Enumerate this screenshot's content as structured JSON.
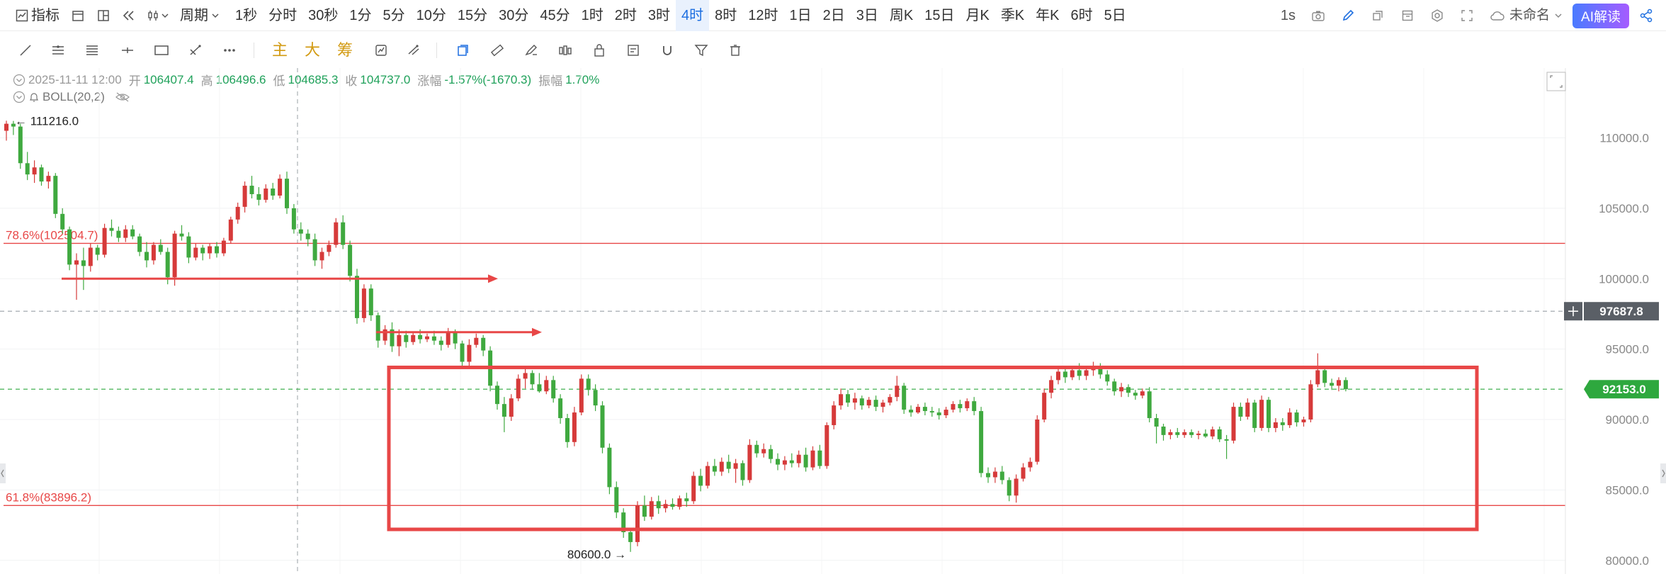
{
  "toolbar": {
    "indicator_label": "指标",
    "period_label": "周期",
    "intervals": [
      "1秒",
      "分时",
      "30秒",
      "1分",
      "5分",
      "10分",
      "15分",
      "30分",
      "45分",
      "1时",
      "2时",
      "3时",
      "4时",
      "8时",
      "12时",
      "1日",
      "2日",
      "3日",
      "周K",
      "15日",
      "月K",
      "季K",
      "年K",
      "6时",
      "5日"
    ],
    "active_interval": "4时",
    "refresh_label": "1s",
    "layout_name": "未命名",
    "ai_label": "AI解读"
  },
  "drawing_tools": {
    "chip_labels": [
      "主",
      "大",
      "筹"
    ]
  },
  "ohlc": {
    "datetime": "2025-11-11 12:00",
    "open_label": "开",
    "open": "106407.4",
    "high_label": "高",
    "high": "106496.6",
    "low_label": "低",
    "low": "104685.3",
    "close_label": "收",
    "close": "104737.0",
    "change_label": "涨幅",
    "change": "-1.57%(-1670.3)",
    "amplitude_label": "振幅",
    "amplitude": "1.70%"
  },
  "indicator": {
    "name": "BOLL(20,2)"
  },
  "colors": {
    "up": "#d63a3a",
    "down": "#3fa93f",
    "annotation": "#e84747",
    "last_price_bg": "#2ea83e",
    "crosshair_bg": "#5a5f66",
    "accent": "#1e6fe0"
  },
  "chart_data": {
    "type": "candlestick",
    "symbol_interval": "4时",
    "y_ticks": [
      "110000.0",
      "105000.0",
      "100000.0",
      "95000.0",
      "90000.0",
      "85000.0",
      "80000.0"
    ],
    "ylim": [
      79900,
      114000
    ],
    "high_marker": "111216.0",
    "low_marker": "80600.0",
    "last_price": "92153.0",
    "crosshair_price": "97687.8",
    "fib_levels": [
      {
        "label": "78.6%(102504.7)",
        "price": 102504.7
      },
      {
        "label": "61.8%(83896.2)",
        "price": 83896.2
      }
    ],
    "annotations": {
      "range_box": {
        "top_price": 93700,
        "bottom_price": 82200
      },
      "arrows": [
        {
          "price": 100000
        },
        {
          "price": 96200
        }
      ]
    },
    "candles": [
      [
        110500,
        111216,
        109800,
        111000
      ],
      [
        111000,
        111200,
        110200,
        110800
      ],
      [
        110800,
        111000,
        107800,
        108200
      ],
      [
        108200,
        109000,
        107000,
        107400
      ],
      [
        107400,
        108400,
        106800,
        107900
      ],
      [
        107900,
        108100,
        106600,
        106900
      ],
      [
        106900,
        107600,
        106400,
        107300
      ],
      [
        107300,
        107500,
        104300,
        104600
      ],
      [
        104600,
        105000,
        103200,
        103500
      ],
      [
        103500,
        103700,
        100600,
        101000
      ],
      [
        101000,
        101800,
        98500,
        101300
      ],
      [
        101300,
        102200,
        99200,
        100900
      ],
      [
        100900,
        102500,
        100500,
        102200
      ],
      [
        102200,
        102400,
        101300,
        101700
      ],
      [
        101700,
        103900,
        101500,
        103600
      ],
      [
        103600,
        104200,
        103000,
        103400
      ],
      [
        103400,
        103700,
        102600,
        102900
      ],
      [
        102900,
        103800,
        102600,
        103500
      ],
      [
        103500,
        103800,
        102800,
        103000
      ],
      [
        103000,
        103200,
        101600,
        101900
      ],
      [
        101900,
        102600,
        100800,
        101300
      ],
      [
        101300,
        102600,
        101000,
        102400
      ],
      [
        102400,
        102800,
        101700,
        101900
      ],
      [
        101900,
        102200,
        99600,
        100100
      ],
      [
        100100,
        103400,
        99500,
        103200
      ],
      [
        103200,
        103800,
        102700,
        103000
      ],
      [
        103000,
        103300,
        101100,
        101500
      ],
      [
        101500,
        102500,
        101300,
        102200
      ],
      [
        102200,
        102400,
        101300,
        101800
      ],
      [
        101800,
        102500,
        101400,
        102300
      ],
      [
        102300,
        102600,
        101500,
        101800
      ],
      [
        101800,
        102900,
        101600,
        102700
      ],
      [
        102700,
        104400,
        102500,
        104200
      ],
      [
        104200,
        105400,
        103900,
        105100
      ],
      [
        105100,
        106900,
        104700,
        106600
      ],
      [
        106600,
        107300,
        105700,
        106000
      ],
      [
        106000,
        106500,
        105200,
        105600
      ],
      [
        105600,
        106700,
        105400,
        106400
      ],
      [
        106400,
        106800,
        105600,
        105900
      ],
      [
        105900,
        107400,
        105700,
        107100
      ],
      [
        107100,
        107600,
        104600,
        105000
      ],
      [
        105000,
        105300,
        103200,
        103500
      ],
      [
        103500,
        104000,
        102700,
        103200
      ],
      [
        103200,
        103500,
        102300,
        102800
      ],
      [
        102800,
        103200,
        100900,
        101300
      ],
      [
        101300,
        102200,
        100700,
        101900
      ],
      [
        101900,
        102700,
        101600,
        102400
      ],
      [
        102400,
        104300,
        102200,
        104000
      ],
      [
        104000,
        104500,
        102100,
        102400
      ],
      [
        102400,
        102700,
        99800,
        100200
      ],
      [
        100200,
        100700,
        96800,
        97200
      ],
      [
        97200,
        99600,
        96900,
        99300
      ],
      [
        99300,
        99600,
        97000,
        97400
      ],
      [
        97400,
        97600,
        95100,
        95600
      ],
      [
        95600,
        96700,
        95300,
        96400
      ],
      [
        96400,
        96900,
        94800,
        95200
      ],
      [
        95200,
        96400,
        94500,
        96000
      ],
      [
        96000,
        96300,
        95100,
        95500
      ],
      [
        95500,
        96200,
        95300,
        96000
      ],
      [
        96000,
        96400,
        95400,
        95700
      ],
      [
        95700,
        96100,
        95500,
        95900
      ],
      [
        95900,
        96300,
        95300,
        95600
      ],
      [
        95600,
        95900,
        94900,
        95300
      ],
      [
        95300,
        96500,
        95100,
        96200
      ],
      [
        96200,
        96400,
        95000,
        95400
      ],
      [
        95400,
        95600,
        93700,
        94100
      ],
      [
        94100,
        95700,
        93600,
        95300
      ],
      [
        95300,
        96100,
        95100,
        95800
      ],
      [
        95800,
        96000,
        94500,
        94900
      ],
      [
        94900,
        95200,
        92000,
        92400
      ],
      [
        92400,
        92700,
        90700,
        91100
      ],
      [
        91100,
        91600,
        89100,
        90200
      ],
      [
        90200,
        91800,
        89900,
        91500
      ],
      [
        91500,
        93200,
        91300,
        92900
      ],
      [
        92900,
        93600,
        92200,
        93300
      ],
      [
        93300,
        93500,
        92100,
        92500
      ],
      [
        92500,
        93300,
        91900,
        92000
      ],
      [
        92000,
        93100,
        91800,
        92800
      ],
      [
        92800,
        93100,
        91200,
        91500
      ],
      [
        91500,
        91800,
        89700,
        90100
      ],
      [
        90100,
        90400,
        88000,
        88400
      ],
      [
        88400,
        90900,
        88100,
        90500
      ],
      [
        90500,
        93200,
        90300,
        92900
      ],
      [
        92900,
        93200,
        91700,
        92100
      ],
      [
        92100,
        92500,
        90600,
        91000
      ],
      [
        91000,
        91300,
        87600,
        88000
      ],
      [
        88000,
        88300,
        84700,
        85200
      ],
      [
        85200,
        85600,
        83000,
        83400
      ],
      [
        83400,
        83700,
        81600,
        82000
      ],
      [
        82000,
        82300,
        80600,
        81300
      ],
      [
        81300,
        84200,
        81000,
        83900
      ],
      [
        83900,
        84600,
        82800,
        83100
      ],
      [
        83100,
        84500,
        82900,
        84200
      ],
      [
        84200,
        84600,
        83300,
        83700
      ],
      [
        83700,
        84300,
        83400,
        84000
      ],
      [
        84000,
        84400,
        83600,
        83800
      ],
      [
        83800,
        84600,
        83600,
        84400
      ],
      [
        84400,
        84800,
        83800,
        84200
      ],
      [
        84200,
        86300,
        84000,
        86000
      ],
      [
        86000,
        86500,
        84900,
        85300
      ],
      [
        85300,
        87000,
        85100,
        86700
      ],
      [
        86700,
        87200,
        86000,
        86300
      ],
      [
        86300,
        87300,
        86000,
        87000
      ],
      [
        87000,
        87500,
        86200,
        86500
      ],
      [
        86500,
        87200,
        85500,
        86900
      ],
      [
        86900,
        87100,
        85300,
        85700
      ],
      [
        85700,
        88600,
        85500,
        88200
      ],
      [
        88200,
        88500,
        87300,
        87600
      ],
      [
        87600,
        88300,
        87300,
        87900
      ],
      [
        87900,
        88200,
        86900,
        87200
      ],
      [
        87200,
        87600,
        86400,
        86800
      ],
      [
        86800,
        87400,
        86400,
        87100
      ],
      [
        87100,
        87600,
        86600,
        86900
      ],
      [
        86900,
        87800,
        86600,
        87500
      ],
      [
        87500,
        88000,
        86300,
        86600
      ],
      [
        86600,
        88100,
        86400,
        87800
      ],
      [
        87800,
        88200,
        86500,
        86700
      ],
      [
        86700,
        89800,
        86500,
        89600
      ],
      [
        89600,
        91300,
        89300,
        91000
      ],
      [
        91000,
        92200,
        90700,
        91800
      ],
      [
        91800,
        92100,
        90900,
        91200
      ],
      [
        91200,
        91900,
        90700,
        91500
      ],
      [
        91500,
        91700,
        90700,
        91000
      ],
      [
        91000,
        91600,
        90800,
        91400
      ],
      [
        91400,
        91700,
        90600,
        90900
      ],
      [
        90900,
        91400,
        90500,
        91200
      ],
      [
        91200,
        91800,
        91000,
        91600
      ],
      [
        91600,
        93100,
        91300,
        92400
      ],
      [
        92400,
        92600,
        90400,
        90700
      ],
      [
        90700,
        91000,
        90200,
        90500
      ],
      [
        90500,
        91100,
        90400,
        90900
      ],
      [
        90900,
        91200,
        90300,
        90600
      ],
      [
        90600,
        90900,
        90200,
        90500
      ],
      [
        90500,
        90800,
        90000,
        90300
      ],
      [
        90300,
        90900,
        90100,
        90700
      ],
      [
        90700,
        91300,
        90500,
        91100
      ],
      [
        91100,
        91400,
        90500,
        90800
      ],
      [
        90800,
        91500,
        90600,
        91300
      ],
      [
        91300,
        91600,
        90300,
        90600
      ],
      [
        90600,
        90900,
        85900,
        86200
      ],
      [
        86200,
        86600,
        85500,
        85900
      ],
      [
        85900,
        86600,
        85500,
        86300
      ],
      [
        86300,
        86700,
        85400,
        85700
      ],
      [
        85700,
        85900,
        84200,
        84600
      ],
      [
        84600,
        86100,
        84100,
        85800
      ],
      [
        85800,
        86900,
        85600,
        86600
      ],
      [
        86600,
        87300,
        86300,
        87000
      ],
      [
        87000,
        90300,
        86800,
        90000
      ],
      [
        90000,
        92200,
        89800,
        91900
      ],
      [
        91900,
        93100,
        91500,
        92800
      ],
      [
        92800,
        93700,
        92500,
        93400
      ],
      [
        93400,
        93600,
        92600,
        93000
      ],
      [
        93000,
        93700,
        92800,
        93500
      ],
      [
        93500,
        94000,
        92800,
        93100
      ],
      [
        93100,
        93800,
        92800,
        93500
      ],
      [
        93500,
        94100,
        93100,
        93800
      ],
      [
        93800,
        94000,
        92900,
        93200
      ],
      [
        93200,
        93500,
        92400,
        92700
      ],
      [
        92700,
        92900,
        91700,
        92000
      ],
      [
        92000,
        92600,
        91600,
        92300
      ],
      [
        92300,
        92500,
        91600,
        91900
      ],
      [
        91900,
        92100,
        91400,
        91700
      ],
      [
        91700,
        92200,
        91500,
        92000
      ],
      [
        92000,
        92300,
        89800,
        90100
      ],
      [
        90100,
        90400,
        88300,
        89500
      ],
      [
        89500,
        89700,
        88500,
        88900
      ],
      [
        88900,
        89300,
        88600,
        89100
      ],
      [
        89100,
        89400,
        88700,
        88900
      ],
      [
        88900,
        89300,
        88700,
        89100
      ],
      [
        89100,
        89300,
        88700,
        88900
      ],
      [
        88900,
        89200,
        88600,
        89000
      ],
      [
        89000,
        89300,
        88700,
        88800
      ],
      [
        88800,
        89500,
        88600,
        89300
      ],
      [
        89300,
        89500,
        88400,
        88600
      ],
      [
        88600,
        88900,
        87200,
        88500
      ],
      [
        88500,
        91200,
        88300,
        90900
      ],
      [
        90900,
        91200,
        89900,
        90200
      ],
      [
        90200,
        91500,
        90000,
        91200
      ],
      [
        91200,
        91400,
        89100,
        89400
      ],
      [
        89400,
        91700,
        89200,
        91400
      ],
      [
        91400,
        91600,
        89100,
        89400
      ],
      [
        89400,
        90100,
        89100,
        89800
      ],
      [
        89800,
        90100,
        89200,
        89600
      ],
      [
        89600,
        90800,
        89400,
        90500
      ],
      [
        90500,
        90700,
        89500,
        89800
      ],
      [
        89800,
        90200,
        89500,
        90000
      ],
      [
        90000,
        92800,
        89800,
        92500
      ],
      [
        92500,
        94700,
        92300,
        93500
      ],
      [
        93500,
        93700,
        92300,
        92600
      ],
      [
        92600,
        92900,
        92100,
        92400
      ],
      [
        92400,
        93000,
        92000,
        92800
      ],
      [
        92800,
        93000,
        92000,
        92153
      ]
    ]
  }
}
